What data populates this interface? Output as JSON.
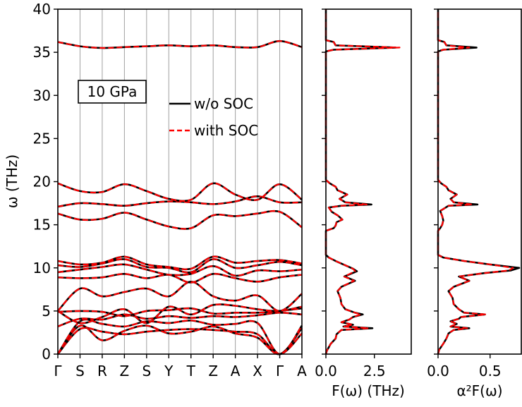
{
  "chart_data": [
    {
      "type": "line",
      "panel": "phonon-dispersion",
      "ylabel": "ω (THz)",
      "ylim": [
        0,
        40
      ],
      "yticks": [
        0,
        5,
        10,
        15,
        20,
        25,
        30,
        35,
        40
      ],
      "xticklabels": [
        "Γ",
        "S",
        "R",
        "Z",
        "S",
        "Y",
        "T",
        "Z",
        "A",
        "X",
        "Γ",
        "A"
      ],
      "annotation": "10 GPa",
      "legend": {
        "placement": "upper-right",
        "entries": [
          "w/o SOC",
          "with SOC"
        ]
      },
      "series": [
        {
          "name": "w/o SOC",
          "color": "#000000",
          "style": "solid"
        },
        {
          "name": "with SOC",
          "color": "#ff0000",
          "style": "dashed"
        }
      ],
      "branches": [
        {
          "name": "band-1",
          "y": [
            0.0,
            2.9,
            2.6,
            2.3,
            2.6,
            2.8,
            2.9,
            2.8,
            2.6,
            2.3,
            0.0,
            2.4
          ]
        },
        {
          "name": "band-2",
          "y": [
            0.0,
            3.3,
            1.6,
            2.7,
            3.3,
            2.4,
            2.6,
            3.2,
            2.4,
            1.9,
            0.0,
            3.0
          ]
        },
        {
          "name": "band-3",
          "y": [
            0.0,
            3.8,
            3.5,
            3.2,
            3.8,
            3.6,
            3.9,
            3.4,
            3.5,
            3.6,
            0.0,
            3.3
          ]
        },
        {
          "name": "band-4",
          "y": [
            3.2,
            4.1,
            4.0,
            4.6,
            4.1,
            4.4,
            4.2,
            4.4,
            4.3,
            4.5,
            4.8,
            4.6
          ]
        },
        {
          "name": "band-5",
          "y": [
            4.9,
            5.0,
            4.9,
            4.4,
            5.0,
            5.1,
            5.3,
            4.7,
            4.8,
            4.8,
            5.0,
            5.3
          ]
        },
        {
          "name": "band-6",
          "y": [
            5.0,
            3.6,
            4.3,
            5.2,
            3.6,
            5.5,
            4.6,
            5.7,
            5.6,
            5.2,
            5.0,
            5.5
          ]
        },
        {
          "name": "band-7",
          "y": [
            5.0,
            7.6,
            6.7,
            7.2,
            7.6,
            6.7,
            8.4,
            6.7,
            6.2,
            6.8,
            5.0,
            7.0
          ]
        },
        {
          "name": "band-8",
          "y": [
            8.9,
            8.8,
            8.9,
            9.3,
            8.8,
            9.2,
            8.3,
            9.3,
            8.8,
            8.4,
            8.9,
            9.2
          ]
        },
        {
          "name": "band-9",
          "y": [
            9.5,
            9.8,
            10.1,
            10.4,
            9.8,
            9.2,
            9.3,
            10.2,
            9.1,
            9.7,
            9.6,
            9.8
          ]
        },
        {
          "name": "band-10",
          "y": [
            10.3,
            10.1,
            10.5,
            11.0,
            10.1,
            10.0,
            9.5,
            11.0,
            10.0,
            10.3,
            10.7,
            10.3
          ]
        },
        {
          "name": "band-11",
          "y": [
            10.8,
            10.4,
            10.6,
            11.3,
            10.4,
            10.1,
            9.9,
            11.3,
            10.6,
            10.8,
            10.9,
            10.5
          ]
        },
        {
          "name": "band-12",
          "y": [
            16.3,
            15.6,
            15.7,
            16.4,
            15.6,
            14.8,
            14.6,
            16.1,
            16.0,
            16.3,
            16.5,
            14.7
          ]
        },
        {
          "name": "band-13",
          "y": [
            17.1,
            17.5,
            17.4,
            17.2,
            17.5,
            17.7,
            17.6,
            17.4,
            17.7,
            18.3,
            17.6,
            17.6
          ]
        },
        {
          "name": "band-14",
          "y": [
            19.8,
            18.9,
            18.8,
            19.7,
            18.9,
            18.0,
            17.9,
            19.8,
            18.5,
            17.9,
            19.7,
            17.9
          ]
        },
        {
          "name": "band-15",
          "y": [
            36.2,
            35.7,
            35.5,
            35.6,
            35.7,
            35.8,
            35.7,
            35.8,
            35.6,
            35.6,
            36.3,
            35.6
          ]
        }
      ]
    },
    {
      "type": "line",
      "panel": "phonon-dos",
      "xlabel": "F(ω) (THz)",
      "xlim": [
        0,
        4.4
      ],
      "xticks": [
        0,
        2.5
      ],
      "xticklabels": [
        "0.0",
        "2.5"
      ],
      "ylim": [
        0,
        40
      ],
      "series": [
        {
          "name": "w/o SOC",
          "color": "#000000",
          "style": "solid",
          "points": [
            [
              0,
              0
            ],
            [
              0.05,
              0.4
            ],
            [
              0.25,
              1.2
            ],
            [
              0.5,
              1.8
            ],
            [
              0.55,
              2.3
            ],
            [
              0.8,
              2.8
            ],
            [
              2.4,
              3.0
            ],
            [
              0.9,
              3.2
            ],
            [
              1.4,
              3.4
            ],
            [
              0.8,
              3.7
            ],
            [
              1.2,
              4.0
            ],
            [
              1.4,
              4.3
            ],
            [
              1.9,
              4.6
            ],
            [
              1.5,
              4.8
            ],
            [
              1.0,
              5.2
            ],
            [
              0.8,
              5.8
            ],
            [
              0.75,
              6.5
            ],
            [
              0.6,
              7.3
            ],
            [
              0.8,
              7.8
            ],
            [
              1.5,
              8.5
            ],
            [
              0.95,
              9.0
            ],
            [
              1.6,
              9.6
            ],
            [
              1.4,
              9.9
            ],
            [
              0.9,
              10.4
            ],
            [
              0.5,
              10.8
            ],
            [
              0.15,
              11.2
            ],
            [
              0.0,
              11.5
            ],
            [
              0.0,
              14.3
            ],
            [
              0.4,
              14.6
            ],
            [
              0.5,
              14.9
            ],
            [
              0.55,
              15.3
            ],
            [
              0.85,
              15.6
            ],
            [
              0.6,
              16.1
            ],
            [
              0.3,
              16.5
            ],
            [
              0.15,
              17.0
            ],
            [
              0.8,
              17.2
            ],
            [
              2.35,
              17.35
            ],
            [
              1.0,
              17.6
            ],
            [
              0.7,
              18.0
            ],
            [
              1.1,
              18.5
            ],
            [
              0.6,
              19.0
            ],
            [
              0.5,
              19.4
            ],
            [
              0.2,
              19.8
            ],
            [
              0.0,
              20.2
            ],
            [
              0.0,
              35.1
            ],
            [
              0.4,
              35.3
            ],
            [
              3.6,
              35.55
            ],
            [
              0.5,
              35.8
            ],
            [
              0.4,
              36.2
            ],
            [
              0.0,
              36.4
            ],
            [
              0.0,
              40
            ]
          ]
        },
        {
          "name": "with SOC",
          "color": "#ff0000",
          "style": "dashed",
          "points": [
            [
              0,
              0
            ],
            [
              0.05,
              0.4
            ],
            [
              0.25,
              1.2
            ],
            [
              0.5,
              1.8
            ],
            [
              0.55,
              2.3
            ],
            [
              0.8,
              2.8
            ],
            [
              2.2,
              3.0
            ],
            [
              0.9,
              3.2
            ],
            [
              1.4,
              3.4
            ],
            [
              0.8,
              3.7
            ],
            [
              1.2,
              4.0
            ],
            [
              1.4,
              4.3
            ],
            [
              1.8,
              4.6
            ],
            [
              1.5,
              4.8
            ],
            [
              1.0,
              5.2
            ],
            [
              0.8,
              5.8
            ],
            [
              0.75,
              6.5
            ],
            [
              0.6,
              7.3
            ],
            [
              0.8,
              7.8
            ],
            [
              1.45,
              8.5
            ],
            [
              0.95,
              9.0
            ],
            [
              1.5,
              9.6
            ],
            [
              1.4,
              9.9
            ],
            [
              0.9,
              10.4
            ],
            [
              0.5,
              10.8
            ],
            [
              0.15,
              11.2
            ],
            [
              0.0,
              11.5
            ],
            [
              0.0,
              14.3
            ],
            [
              0.4,
              14.6
            ],
            [
              0.5,
              14.9
            ],
            [
              0.55,
              15.3
            ],
            [
              0.85,
              15.6
            ],
            [
              0.6,
              16.1
            ],
            [
              0.3,
              16.5
            ],
            [
              0.15,
              17.0
            ],
            [
              0.8,
              17.2
            ],
            [
              2.1,
              17.35
            ],
            [
              1.0,
              17.6
            ],
            [
              0.7,
              18.0
            ],
            [
              1.1,
              18.5
            ],
            [
              0.6,
              19.0
            ],
            [
              0.5,
              19.4
            ],
            [
              0.2,
              19.8
            ],
            [
              0.0,
              20.2
            ],
            [
              0.0,
              35.1
            ],
            [
              0.4,
              35.3
            ],
            [
              3.8,
              35.55
            ],
            [
              0.5,
              35.8
            ],
            [
              0.4,
              36.2
            ],
            [
              0.0,
              36.4
            ],
            [
              0.0,
              40
            ]
          ]
        }
      ]
    },
    {
      "type": "line",
      "panel": "eliashberg-function",
      "xlabel": "α²F(ω)",
      "xlim": [
        0,
        0.8
      ],
      "xticks": [
        0,
        0.5
      ],
      "xticklabels": [
        "0.0",
        "0.5"
      ],
      "ylim": [
        0,
        40
      ],
      "series": [
        {
          "name": "w/o SOC",
          "color": "#000000",
          "style": "solid",
          "points": [
            [
              0,
              0
            ],
            [
              0.01,
              0.5
            ],
            [
              0.05,
              1.2
            ],
            [
              0.08,
              1.8
            ],
            [
              0.1,
              2.4
            ],
            [
              0.15,
              2.8
            ],
            [
              0.3,
              3.0
            ],
            [
              0.12,
              3.2
            ],
            [
              0.18,
              3.5
            ],
            [
              0.12,
              3.8
            ],
            [
              0.2,
              4.1
            ],
            [
              0.22,
              4.3
            ],
            [
              0.45,
              4.6
            ],
            [
              0.25,
              4.8
            ],
            [
              0.2,
              5.2
            ],
            [
              0.15,
              5.8
            ],
            [
              0.14,
              6.5
            ],
            [
              0.1,
              7.3
            ],
            [
              0.15,
              7.8
            ],
            [
              0.3,
              8.5
            ],
            [
              0.2,
              9.0
            ],
            [
              0.45,
              9.4
            ],
            [
              0.7,
              9.7
            ],
            [
              0.78,
              10.0
            ],
            [
              0.5,
              10.4
            ],
            [
              0.25,
              10.8
            ],
            [
              0.05,
              11.2
            ],
            [
              0.0,
              11.5
            ],
            [
              0.0,
              14.3
            ],
            [
              0.02,
              14.6
            ],
            [
              0.04,
              15.0
            ],
            [
              0.05,
              15.5
            ],
            [
              0.04,
              16.0
            ],
            [
              0.02,
              16.6
            ],
            [
              0.1,
              17.2
            ],
            [
              0.38,
              17.35
            ],
            [
              0.15,
              17.6
            ],
            [
              0.12,
              18.0
            ],
            [
              0.18,
              18.5
            ],
            [
              0.1,
              19.0
            ],
            [
              0.08,
              19.4
            ],
            [
              0.03,
              19.8
            ],
            [
              0.0,
              20.2
            ],
            [
              0.0,
              35.1
            ],
            [
              0.05,
              35.3
            ],
            [
              0.37,
              35.55
            ],
            [
              0.08,
              35.8
            ],
            [
              0.06,
              36.2
            ],
            [
              0.0,
              36.4
            ],
            [
              0.0,
              40
            ]
          ]
        },
        {
          "name": "with SOC",
          "color": "#ff0000",
          "style": "dashed",
          "points": [
            [
              0,
              0
            ],
            [
              0.01,
              0.5
            ],
            [
              0.05,
              1.2
            ],
            [
              0.08,
              1.8
            ],
            [
              0.1,
              2.4
            ],
            [
              0.15,
              2.8
            ],
            [
              0.28,
              3.0
            ],
            [
              0.12,
              3.2
            ],
            [
              0.18,
              3.5
            ],
            [
              0.12,
              3.8
            ],
            [
              0.2,
              4.1
            ],
            [
              0.22,
              4.3
            ],
            [
              0.46,
              4.6
            ],
            [
              0.25,
              4.8
            ],
            [
              0.2,
              5.2
            ],
            [
              0.15,
              5.8
            ],
            [
              0.14,
              6.5
            ],
            [
              0.1,
              7.3
            ],
            [
              0.15,
              7.8
            ],
            [
              0.3,
              8.5
            ],
            [
              0.2,
              9.0
            ],
            [
              0.45,
              9.4
            ],
            [
              0.68,
              9.7
            ],
            [
              0.72,
              10.0
            ],
            [
              0.5,
              10.4
            ],
            [
              0.25,
              10.8
            ],
            [
              0.05,
              11.2
            ],
            [
              0.0,
              11.5
            ],
            [
              0.0,
              14.3
            ],
            [
              0.02,
              14.6
            ],
            [
              0.04,
              15.0
            ],
            [
              0.05,
              15.5
            ],
            [
              0.04,
              16.0
            ],
            [
              0.02,
              16.6
            ],
            [
              0.1,
              17.2
            ],
            [
              0.33,
              17.35
            ],
            [
              0.15,
              17.6
            ],
            [
              0.12,
              18.0
            ],
            [
              0.18,
              18.5
            ],
            [
              0.1,
              19.0
            ],
            [
              0.08,
              19.4
            ],
            [
              0.03,
              19.8
            ],
            [
              0.0,
              20.2
            ],
            [
              0.0,
              35.1
            ],
            [
              0.05,
              35.3
            ],
            [
              0.3,
              35.55
            ],
            [
              0.08,
              35.8
            ],
            [
              0.06,
              36.2
            ],
            [
              0.0,
              36.4
            ],
            [
              0.0,
              40
            ]
          ]
        }
      ]
    }
  ]
}
